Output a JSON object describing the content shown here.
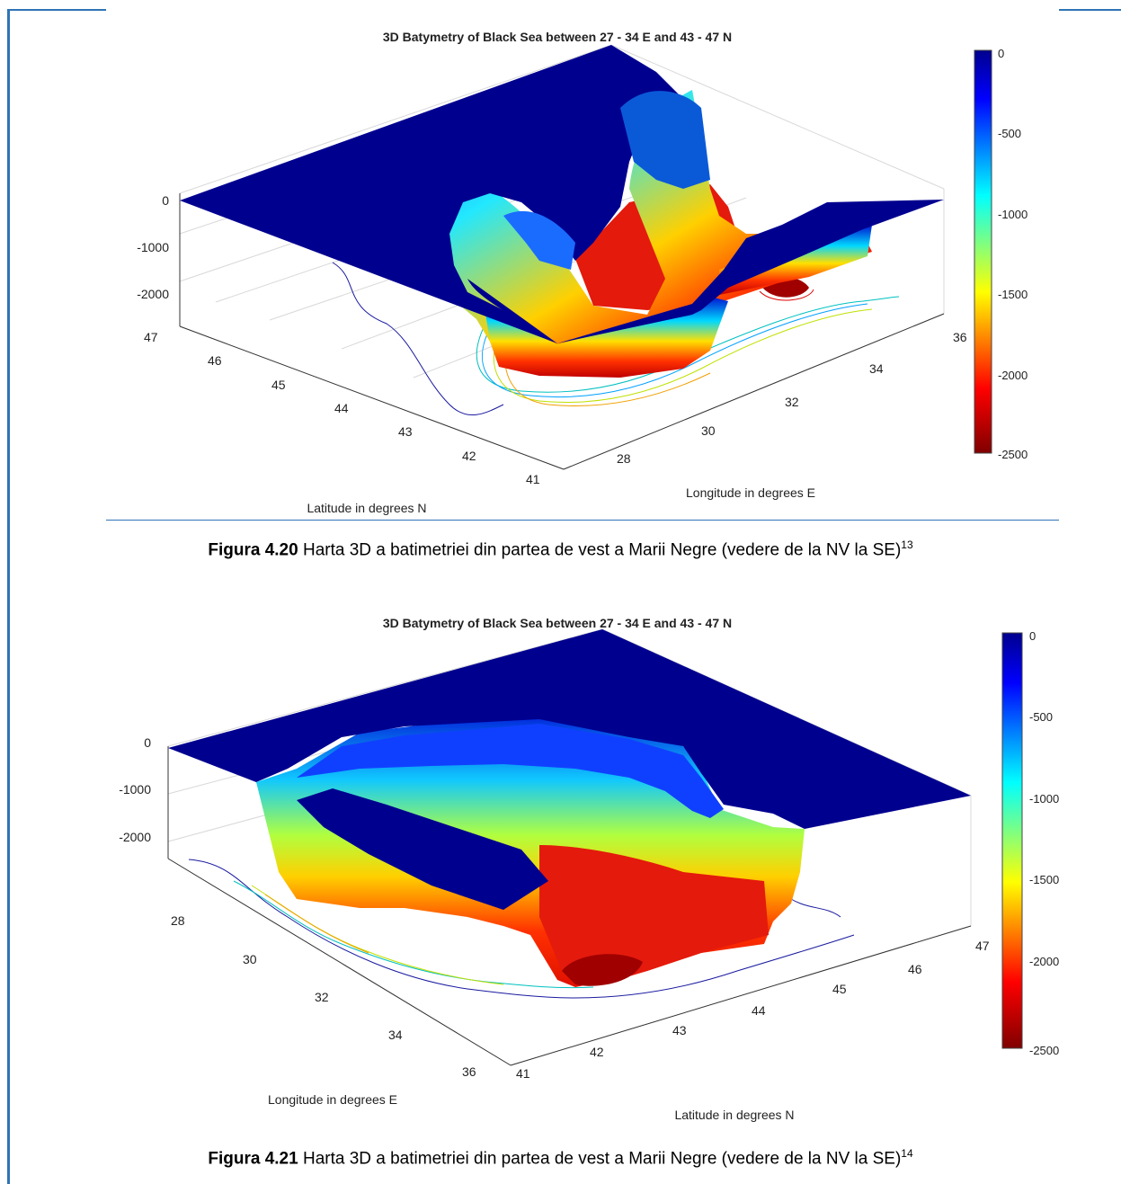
{
  "figures": [
    {
      "caption_label": "Figura 4.20",
      "caption_text": " Harta 3D a batimetriei din partea de vest a Marii Negre (vedere de la NV la SE)",
      "caption_sup": "13"
    },
    {
      "caption_label": "Figura 4.21",
      "caption_text": " Harta 3D a batimetriei din partea de vest a Marii Negre (vedere de la NV la SE)",
      "caption_sup": "14"
    }
  ],
  "chart_data": [
    {
      "type": "surface3d",
      "title": "3D Batymetry of Black Sea between 27 - 34 E and 43 - 47 N",
      "view": "from NW",
      "z_axis": {
        "ticks": [
          0,
          -1000,
          -2000
        ]
      },
      "latitude_axis": {
        "label": "Latitude in degrees N",
        "ticks": [
          47,
          46,
          45,
          44,
          43,
          42,
          41
        ]
      },
      "longitude_axis": {
        "label": "Longitude in degrees E",
        "ticks": [
          28,
          30,
          32,
          34,
          36
        ]
      },
      "colorbar": {
        "ticks": [
          0,
          -500,
          -1000,
          -1500,
          -2000,
          -2500
        ],
        "range": [
          -2500,
          0
        ],
        "colormap": "jet"
      },
      "contours": true,
      "grid": true
    },
    {
      "type": "surface3d",
      "title": "3D Batymetry of Black Sea between 27 - 34 E and 43 - 47 N",
      "view": "rotated",
      "z_axis": {
        "ticks": [
          0,
          -1000,
          -2000
        ]
      },
      "latitude_axis": {
        "label": "Latitude in degrees N",
        "ticks": [
          41,
          42,
          43,
          44,
          45,
          46,
          47
        ]
      },
      "longitude_axis": {
        "label": "Longitude in degrees E",
        "ticks": [
          28,
          30,
          32,
          34,
          36
        ]
      },
      "colorbar": {
        "ticks": [
          0,
          -500,
          -1000,
          -1500,
          -2000,
          -2500
        ],
        "range": [
          -2500,
          0
        ],
        "colormap": "jet"
      },
      "contours": true,
      "grid": true
    }
  ]
}
